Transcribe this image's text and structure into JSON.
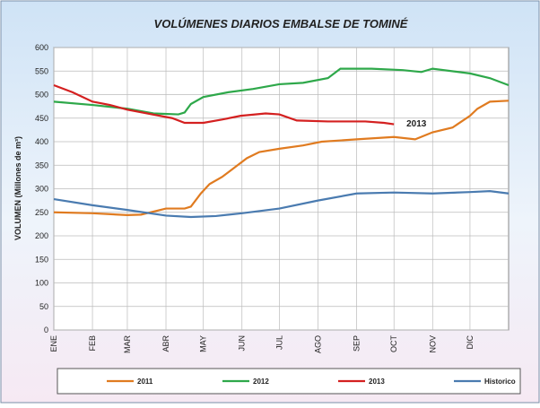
{
  "chart_data": {
    "type": "line",
    "title": "VOLÚMENES DIARIOS EMBALSE DE TOMINÉ",
    "y_label": "VOLUMEN (Millones de m³)",
    "annotation": {
      "text": "2013",
      "x": 283,
      "y": 432
    },
    "xlim": [
      0,
      365
    ],
    "xticks": [
      {
        "value": 0,
        "label": "ENE"
      },
      {
        "value": 31,
        "label": "FEB"
      },
      {
        "value": 59,
        "label": "MAR"
      },
      {
        "value": 90,
        "label": "ABR"
      },
      {
        "value": 120,
        "label": "MAY"
      },
      {
        "value": 151,
        "label": "JUN"
      },
      {
        "value": 181,
        "label": "JUL"
      },
      {
        "value": 212,
        "label": "AGO"
      },
      {
        "value": 243,
        "label": "SEP"
      },
      {
        "value": 273,
        "label": "OCT"
      },
      {
        "value": 304,
        "label": "NOV"
      },
      {
        "value": 334,
        "label": "DIC"
      }
    ],
    "ylim": [
      0,
      600
    ],
    "yticks": [
      0,
      50,
      100,
      150,
      200,
      250,
      300,
      350,
      400,
      450,
      500,
      550,
      600
    ],
    "grid": true,
    "series": [
      {
        "name": "2011",
        "color": "#e07b20",
        "x": [
          0,
          31,
          59,
          70,
          90,
          105,
          110,
          118,
          125,
          135,
          145,
          155,
          165,
          181,
          200,
          215,
          243,
          273,
          290,
          304,
          320,
          334,
          340,
          350,
          365
        ],
        "values": [
          250,
          248,
          244,
          245,
          258,
          258,
          262,
          290,
          310,
          325,
          345,
          365,
          378,
          385,
          392,
          400,
          405,
          410,
          405,
          420,
          430,
          455,
          470,
          485,
          487
        ]
      },
      {
        "name": "2012",
        "color": "#2ea84a",
        "x": [
          0,
          31,
          59,
          80,
          100,
          105,
          110,
          120,
          140,
          160,
          181,
          200,
          220,
          230,
          255,
          280,
          295,
          304,
          334,
          350,
          365
        ],
        "values": [
          485,
          478,
          470,
          460,
          458,
          462,
          480,
          495,
          505,
          512,
          522,
          525,
          535,
          555,
          555,
          552,
          548,
          555,
          545,
          535,
          520
        ]
      },
      {
        "name": "2013",
        "color": "#d42020",
        "x": [
          0,
          15,
          31,
          45,
          59,
          85,
          95,
          105,
          120,
          135,
          150,
          170,
          181,
          195,
          220,
          250,
          265,
          273
        ],
        "values": [
          520,
          505,
          485,
          478,
          468,
          455,
          450,
          440,
          440,
          447,
          455,
          460,
          458,
          445,
          443,
          443,
          440,
          437
        ]
      },
      {
        "name": "Historico",
        "color": "#4a7bb0",
        "x": [
          0,
          31,
          59,
          90,
          110,
          130,
          151,
          181,
          212,
          243,
          273,
          304,
          334,
          350,
          365
        ],
        "values": [
          278,
          265,
          255,
          243,
          240,
          242,
          248,
          258,
          275,
          290,
          292,
          290,
          293,
          295,
          290
        ]
      }
    ]
  }
}
